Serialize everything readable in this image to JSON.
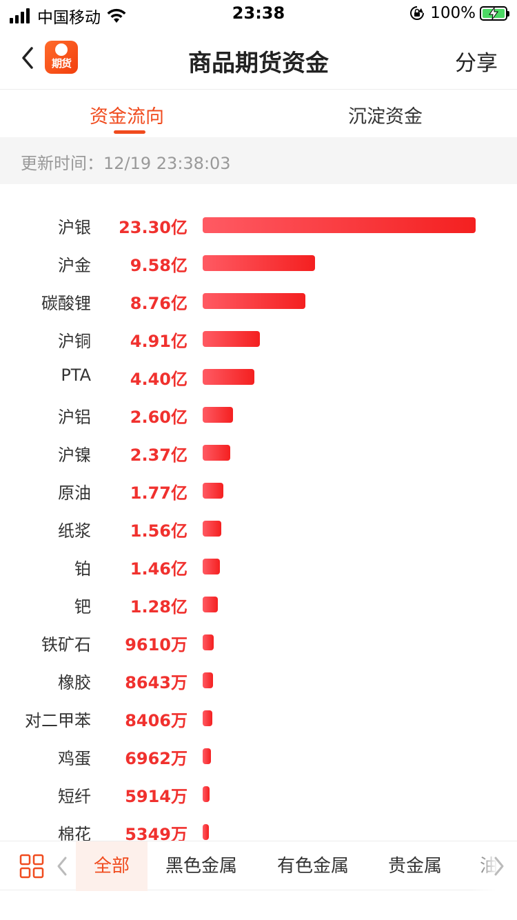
{
  "status_bar": {
    "carrier": "中国移动",
    "time": "23:38",
    "battery": "100%"
  },
  "nav": {
    "logo_text": "期货",
    "title": "商品期货资金",
    "share": "分享"
  },
  "tabs": [
    {
      "label": "资金流向",
      "active": true
    },
    {
      "label": "沉淀资金",
      "active": false
    }
  ],
  "update": {
    "text": "更新时间：12/19 23:38:03"
  },
  "chart_data": {
    "type": "bar",
    "orientation": "horizontal",
    "unit_note": "亿 / 万",
    "categories": [
      "沪银",
      "沪金",
      "碳酸锂",
      "沪铜",
      "PTA",
      "沪铝",
      "沪镍",
      "原油",
      "纸浆",
      "铂",
      "钯",
      "铁矿石",
      "橡胶",
      "对二甲苯",
      "鸡蛋",
      "短纤",
      "棉花"
    ],
    "labels": [
      "23.30亿",
      "9.58亿",
      "8.76亿",
      "4.91亿",
      "4.40亿",
      "2.60亿",
      "2.37亿",
      "1.77亿",
      "1.56亿",
      "1.46亿",
      "1.28亿",
      "9610万",
      "8643万",
      "8406万",
      "6962万",
      "5914万",
      "5349万"
    ],
    "values": [
      23.3,
      9.58,
      8.76,
      4.91,
      4.4,
      2.6,
      2.37,
      1.77,
      1.56,
      1.46,
      1.28,
      0.961,
      0.8643,
      0.8406,
      0.6962,
      0.5914,
      0.5349
    ],
    "value_unit": "亿",
    "bar_color": "#f42020"
  },
  "bottom_categories": [
    {
      "label": "全部",
      "active": true
    },
    {
      "label": "黑色金属",
      "active": false
    },
    {
      "label": "有色金属",
      "active": false
    },
    {
      "label": "贵金属",
      "active": false
    },
    {
      "label": "油",
      "active": false
    }
  ],
  "colors": {
    "accent": "#f04b1e",
    "value_red": "#f0312e"
  }
}
